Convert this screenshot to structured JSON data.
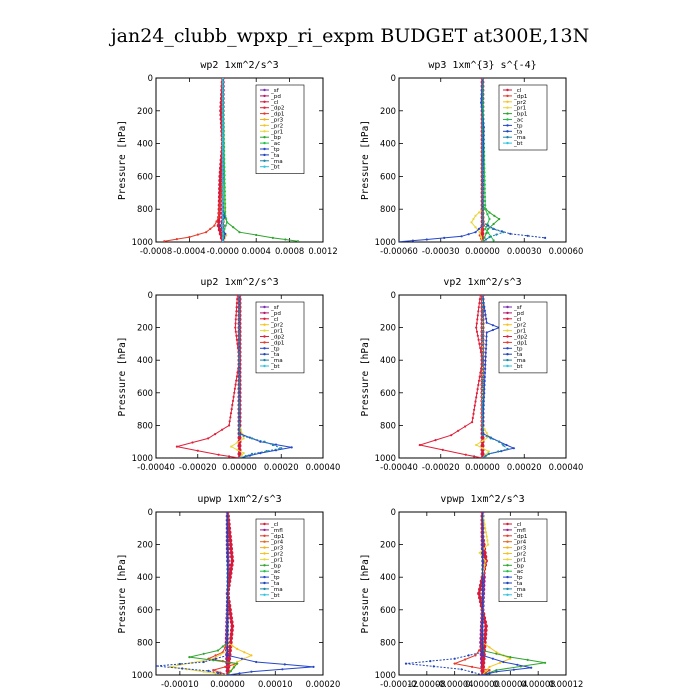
{
  "figure_title": "jan24_clubb_wpxp_ri_expm  BUDGET at300E,13N",
  "colors": {
    "_sf": "#7a2bb0",
    "_pd": "#b5166b",
    "_cl": "#d7193a",
    "_dp2": "#e0203a",
    "_dp1": "#e63a2a",
    "_pr3": "#f3b21c",
    "_pr2": "#f6c420",
    "_pr1": "#e8d73a",
    "_bp": "#2fa52f",
    "_bp1": "#2fa52f",
    "_ac": "#22c04a",
    "_tp": "#2547c8",
    "_ta": "#1f44b8",
    "_ma": "#1e87a8",
    "_bt": "#2ec3e0",
    "_mfl": "#9a1e8a",
    "_pr4": "#e06a20",
    "_pr5": "#f08a1a"
  },
  "chart_data": [
    {
      "type": "line",
      "title": "wp2  1xm^2/s^3",
      "ylabel": "Pressure [hPa]",
      "ylim": [
        1000,
        0
      ],
      "xlim": [
        -0.0008,
        0.0012
      ],
      "xticks": [
        "-0.0008",
        "-0.0004",
        "-0.0000",
        "0.0004",
        "0.0008",
        "0.0012"
      ],
      "yticks": [
        "0",
        "200",
        "400",
        "600",
        "800",
        "1000"
      ],
      "legend": [
        "_sf",
        "_pd",
        "_cl",
        "_dp2",
        "_dp1",
        "_pr3",
        "_pr2",
        "_pr1",
        "_bp",
        "_ac",
        "_tp",
        "_ta",
        "_ma",
        "_bt"
      ],
      "series": [
        {
          "name": "_pd",
          "x": [
            0,
            0,
            0,
            0,
            0,
            0
          ],
          "y": [
            0,
            200,
            400,
            600,
            800,
            1000
          ]
        },
        {
          "name": "_cl",
          "x": [
            0,
            -2e-05,
            0,
            -3e-05,
            -4e-05,
            -5e-05,
            0
          ],
          "y": [
            0,
            200,
            400,
            600,
            800,
            900,
            1000
          ]
        },
        {
          "name": "_dp1",
          "x": [
            0,
            0,
            -5e-05,
            -0.0001,
            -0.0002,
            -0.0004,
            -0.0007
          ],
          "y": [
            0,
            600,
            850,
            900,
            940,
            970,
            995
          ]
        },
        {
          "name": "_pr2",
          "x": [
            0,
            0,
            3e-05,
            -2e-05,
            4e-05,
            0
          ],
          "y": [
            0,
            600,
            850,
            900,
            960,
            1000
          ]
        },
        {
          "name": "_bp",
          "x": [
            0,
            0,
            5e-05,
            0.0002,
            0.0006,
            0.0009
          ],
          "y": [
            0,
            800,
            880,
            940,
            975,
            995
          ]
        },
        {
          "name": "_ac",
          "x": [
            0,
            3e-05,
            5e-05,
            2e-05,
            0
          ],
          "y": [
            0,
            840,
            880,
            920,
            1000
          ]
        },
        {
          "name": "_tp",
          "x": [
            0,
            0,
            2e-05,
            -3e-05,
            3e-05,
            0
          ],
          "y": [
            0,
            800,
            850,
            900,
            950,
            1000
          ]
        },
        {
          "name": "_bt",
          "x": [
            0,
            0,
            0,
            0
          ],
          "y": [
            0,
            400,
            800,
            1000
          ]
        }
      ]
    },
    {
      "type": "line",
      "title": "wp3  1xm^{3} s^{-4}",
      "ylabel": "Pressure [hPa]",
      "ylim": [
        1000,
        0
      ],
      "xlim": [
        -0.0006,
        0.0006
      ],
      "xticks": [
        "-0.00060",
        "-0.00030",
        "0.00000",
        "0.00030",
        "0.00060"
      ],
      "yticks": [
        "0",
        "200",
        "400",
        "600",
        "800",
        "1000"
      ],
      "legend": [
        "_cl",
        "_dp1",
        "_pr2",
        "_pr1",
        "_bp1",
        "_ac",
        "_tp",
        "_ta",
        "_ma",
        "_bt"
      ],
      "series": [
        {
          "name": "_cl",
          "x": [
            0,
            0,
            0,
            0
          ],
          "y": [
            0,
            300,
            700,
            1000
          ]
        },
        {
          "name": "_dp1",
          "x": [
            0,
            0,
            1e-05,
            -2e-05,
            0
          ],
          "y": [
            0,
            700,
            900,
            960,
            1000
          ]
        },
        {
          "name": "_pr1",
          "x": [
            0,
            0,
            -5e-05,
            -8e-05,
            -2e-05,
            0
          ],
          "y": [
            0,
            800,
            840,
            880,
            940,
            1000
          ]
        },
        {
          "name": "_bp1",
          "x": [
            0,
            0,
            5e-05,
            0.00012,
            4e-05,
            0
          ],
          "y": [
            0,
            780,
            820,
            860,
            920,
            1000
          ]
        },
        {
          "name": "_ac",
          "x": [
            0,
            2e-05,
            5e-05,
            2e-05,
            8e-05
          ],
          "y": [
            0,
            800,
            860,
            920,
            990
          ]
        },
        {
          "name": "_tp",
          "x": [
            0,
            -1e-05,
            1e-05,
            0,
            0,
            -5e-05,
            -0.00015,
            -0.0004,
            -0.0006
          ],
          "y": [
            0,
            150,
            300,
            700,
            900,
            940,
            965,
            985,
            998
          ]
        },
        {
          "name": "_ta",
          "x": [
            0,
            0,
            8e-05,
            0.0002,
            0.00045
          ],
          "y": [
            0,
            880,
            920,
            950,
            975
          ]
        },
        {
          "name": "_ma",
          "x": [
            0,
            0,
            0.00015,
            5e-05,
            0
          ],
          "y": [
            0,
            900,
            940,
            970,
            1000
          ]
        }
      ]
    },
    {
      "type": "line",
      "title": "up2  1xm^2/s^3",
      "ylabel": "Pressure [hPa]",
      "ylim": [
        1000,
        0
      ],
      "xlim": [
        -0.0004,
        0.0004
      ],
      "xticks": [
        "-0.00040",
        "-0.00020",
        "0.00000",
        "0.00020",
        "0.00040"
      ],
      "yticks": [
        "0",
        "200",
        "400",
        "600",
        "800",
        "1000"
      ],
      "legend": [
        "_sf",
        "_pd",
        "_cl",
        "_pr2",
        "_pr1",
        "_dp2",
        "_dp1",
        "_tp",
        "_ta",
        "_ma",
        "_bt"
      ],
      "series": [
        {
          "name": "_pd",
          "x": [
            0,
            0,
            0,
            0
          ],
          "y": [
            0,
            300,
            700,
            1000
          ]
        },
        {
          "name": "_cl",
          "x": [
            0,
            0,
            0,
            0
          ],
          "y": [
            0,
            400,
            800,
            1000
          ]
        },
        {
          "name": "_pr1",
          "x": [
            0,
            0,
            2e-05,
            -4e-05,
            2e-05,
            0
          ],
          "y": [
            0,
            800,
            880,
            930,
            970,
            1000
          ]
        },
        {
          "name": "_dp2",
          "x": [
            -1e-05,
            -2e-05,
            0,
            -5e-05,
            -0.00015,
            -0.0003,
            -0.0001,
            0
          ],
          "y": [
            0,
            200,
            400,
            800,
            880,
            930,
            980,
            1000
          ]
        },
        {
          "name": "_tp",
          "x": [
            0,
            0,
            0.0001,
            0.00025,
            0.0001,
            0
          ],
          "y": [
            0,
            850,
            900,
            935,
            970,
            1000
          ]
        },
        {
          "name": "_ma",
          "x": [
            0,
            0,
            0.00012,
            0.0002,
            6e-05,
            0
          ],
          "y": [
            0,
            860,
            900,
            940,
            975,
            1000
          ]
        }
      ]
    },
    {
      "type": "line",
      "title": "vp2  1xm^2/s^3",
      "ylabel": "Pressure [hPa]",
      "ylim": [
        1000,
        0
      ],
      "xlim": [
        -0.0004,
        0.0004
      ],
      "xticks": [
        "-0.00040",
        "-0.00020",
        "0.00000",
        "0.00020",
        "0.00040"
      ],
      "yticks": [
        "0",
        "200",
        "400",
        "600",
        "800",
        "1000"
      ],
      "legend": [
        "_sf",
        "_pd",
        "_cl",
        "_pr2",
        "_pr1",
        "_dp2",
        "_dp1",
        "_tp",
        "_ta",
        "_ma",
        "_bt"
      ],
      "series": [
        {
          "name": "_pd",
          "x": [
            0,
            0,
            0,
            0
          ],
          "y": [
            0,
            300,
            700,
            1000
          ]
        },
        {
          "name": "_cl",
          "x": [
            0,
            0,
            0,
            0
          ],
          "y": [
            0,
            400,
            800,
            1000
          ]
        },
        {
          "name": "_pr1",
          "x": [
            0,
            0,
            3e-05,
            -3e-05,
            3e-05,
            0
          ],
          "y": [
            0,
            800,
            870,
            920,
            960,
            1000
          ]
        },
        {
          "name": "_dp2",
          "x": [
            -1e-05,
            -3e-05,
            0,
            -5e-05,
            -0.00015,
            -0.0003,
            -8e-05,
            0
          ],
          "y": [
            0,
            200,
            400,
            780,
            860,
            920,
            980,
            1000
          ]
        },
        {
          "name": "_tp",
          "x": [
            0,
            2e-05,
            8e-05,
            2e-05,
            0,
            8e-05,
            0.00015,
            3e-05,
            0
          ],
          "y": [
            0,
            170,
            200,
            230,
            850,
            900,
            940,
            975,
            1000
          ]
        },
        {
          "name": "_ma",
          "x": [
            0,
            0,
            8e-05,
            0.00012,
            3e-05,
            0
          ],
          "y": [
            0,
            860,
            900,
            945,
            975,
            1000
          ]
        }
      ]
    },
    {
      "type": "line",
      "title": "upwp  1xm^2/s^3",
      "ylabel": "Pressure [hPa]",
      "ylim": [
        1000,
        0
      ],
      "xlim": [
        -0.00015,
        0.0002
      ],
      "xticks": [
        "-0.00010",
        "0.00000",
        "0.00010",
        "0.00020"
      ],
      "yticks": [
        "0",
        "200",
        "400",
        "600",
        "800",
        "1000"
      ],
      "legend": [
        "_cl",
        "_mfl",
        "_dp1",
        "_pr4",
        "_pr3",
        "_pr2",
        "_pr1",
        "_bp",
        "_ac",
        "_tp",
        "_ta",
        "_ma",
        "_bt"
      ],
      "series": [
        {
          "name": "_mfl",
          "x": [
            0,
            0,
            2e-06,
            -2e-06,
            0
          ],
          "y": [
            0,
            200,
            400,
            800,
            1000
          ]
        },
        {
          "name": "_cl",
          "x": [
            0,
            1e-05,
            0,
            1e-05,
            0
          ],
          "y": [
            0,
            300,
            500,
            700,
            1000
          ]
        },
        {
          "name": "_dp1",
          "x": [
            0,
            0,
            -1e-05,
            -4e-05,
            2e-05,
            -3e-05,
            0
          ],
          "y": [
            0,
            800,
            860,
            900,
            930,
            970,
            1000
          ]
        },
        {
          "name": "_pr2",
          "x": [
            0,
            0,
            2e-05,
            5e-05,
            2e-05,
            0
          ],
          "y": [
            0,
            800,
            840,
            880,
            920,
            1000
          ]
        },
        {
          "name": "_pr1",
          "x": [
            0,
            0,
            -3e-05,
            -0.00012,
            -5e-05,
            0
          ],
          "y": [
            0,
            850,
            900,
            950,
            980,
            1000
          ]
        },
        {
          "name": "_bp",
          "x": [
            0,
            0,
            -2e-05,
            -8e-05,
            2e-05,
            0
          ],
          "y": [
            0,
            800,
            850,
            890,
            930,
            1000
          ]
        },
        {
          "name": "_tp",
          "x": [
            0,
            0,
            6e-05,
            0.00018,
            5e-05,
            0
          ],
          "y": [
            0,
            880,
            920,
            950,
            980,
            1000
          ]
        },
        {
          "name": "_ta",
          "x": [
            0,
            0,
            -5e-05,
            -0.00015,
            -4e-05,
            0
          ],
          "y": [
            0,
            880,
            920,
            945,
            975,
            1000
          ]
        }
      ]
    },
    {
      "type": "line",
      "title": "vpwp  1xm^2/s^3",
      "ylabel": "Pressure [hPa]",
      "ylim": [
        1000,
        0
      ],
      "xlim": [
        -0.00012,
        0.00012
      ],
      "xticks": [
        "-0.00012",
        "-0.00008",
        "-0.00004",
        "0.00000",
        "0.00004",
        "0.00008",
        "0.00012"
      ],
      "yticks": [
        "0",
        "200",
        "400",
        "600",
        "800",
        "1000"
      ],
      "legend": [
        "_cl",
        "_mfl",
        "_dp1",
        "_pr4",
        "_pr3",
        "_pr2",
        "_pr1",
        "_bp",
        "_ac",
        "_tp",
        "_ta",
        "_ma",
        "_bt"
      ],
      "series": [
        {
          "name": "_mfl",
          "x": [
            0,
            0,
            2e-06,
            -2e-06,
            0
          ],
          "y": [
            0,
            200,
            400,
            800,
            1000
          ]
        },
        {
          "name": "_cl",
          "x": [
            0,
            0,
            5e-06,
            -5e-06,
            5e-06,
            0
          ],
          "y": [
            0,
            150,
            300,
            500,
            700,
            1000
          ]
        },
        {
          "name": "_pr1",
          "x": [
            0,
            8e-06,
            -4e-06,
            4e-06,
            0
          ],
          "y": [
            0,
            200,
            250,
            300,
            400
          ]
        },
        {
          "name": "_dp1",
          "x": [
            0,
            0,
            -1e-05,
            -4e-05,
            1e-05,
            0
          ],
          "y": [
            0,
            820,
            880,
            930,
            970,
            1000
          ]
        },
        {
          "name": "_pr2",
          "x": [
            0,
            0,
            2e-05,
            4e-05,
            1e-05,
            0
          ],
          "y": [
            0,
            800,
            860,
            900,
            950,
            1000
          ]
        },
        {
          "name": "_bp",
          "x": [
            0,
            0,
            4e-05,
            9e-05,
            2e-05,
            0
          ],
          "y": [
            0,
            850,
            890,
            925,
            970,
            1000
          ]
        },
        {
          "name": "_ta",
          "x": [
            0,
            0,
            -4e-05,
            -0.00011,
            -3e-05,
            0
          ],
          "y": [
            0,
            860,
            900,
            930,
            965,
            1000
          ]
        },
        {
          "name": "_tp",
          "x": [
            0,
            0,
            3e-05,
            7e-05,
            2e-05,
            0
          ],
          "y": [
            0,
            880,
            920,
            955,
            980,
            1000
          ]
        }
      ]
    }
  ]
}
